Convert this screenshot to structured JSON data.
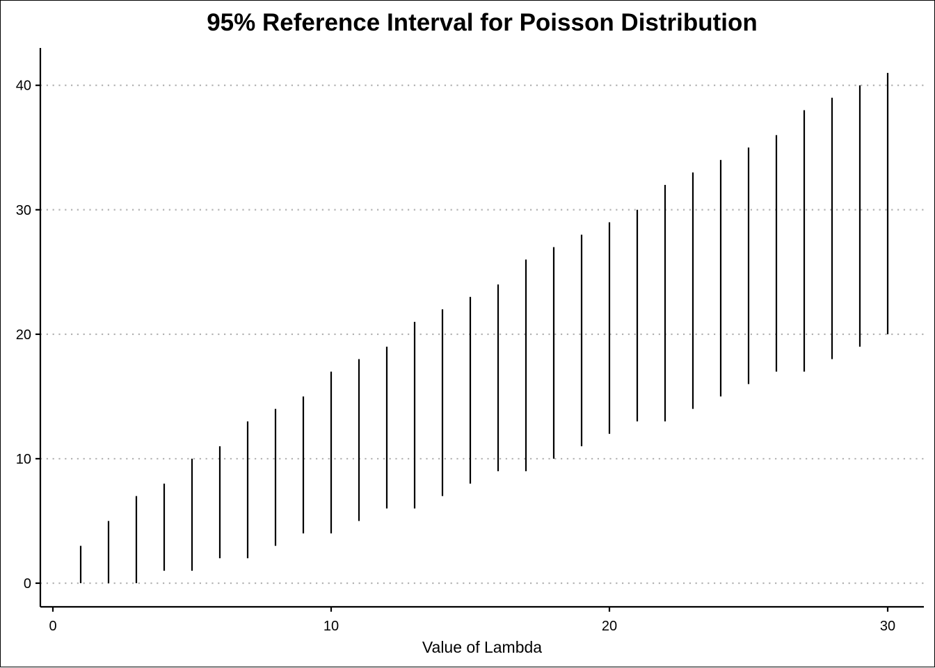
{
  "chart_data": {
    "type": "interval",
    "title": "95% Reference Interval for Poisson Distribution",
    "xlabel": "Value of Lambda",
    "ylabel": "",
    "xlim": [
      -0.45,
      31.3
    ],
    "ylim": [
      -1.9,
      43
    ],
    "x_ticks": [
      0,
      10,
      20,
      30
    ],
    "y_ticks": [
      0,
      10,
      20,
      30,
      40
    ],
    "grid": "horizontal-dotted",
    "colors": {
      "interval": "#000000",
      "grid": "#b3b3b3",
      "axis": "#000000"
    },
    "intervals": [
      {
        "lambda": 1,
        "lower": 0,
        "upper": 3
      },
      {
        "lambda": 2,
        "lower": 0,
        "upper": 5
      },
      {
        "lambda": 3,
        "lower": 0,
        "upper": 7
      },
      {
        "lambda": 4,
        "lower": 1,
        "upper": 8
      },
      {
        "lambda": 5,
        "lower": 1,
        "upper": 10
      },
      {
        "lambda": 6,
        "lower": 2,
        "upper": 11
      },
      {
        "lambda": 7,
        "lower": 2,
        "upper": 13
      },
      {
        "lambda": 8,
        "lower": 3,
        "upper": 14
      },
      {
        "lambda": 9,
        "lower": 4,
        "upper": 15
      },
      {
        "lambda": 10,
        "lower": 4,
        "upper": 17
      },
      {
        "lambda": 11,
        "lower": 5,
        "upper": 18
      },
      {
        "lambda": 12,
        "lower": 6,
        "upper": 19
      },
      {
        "lambda": 13,
        "lower": 6,
        "upper": 21
      },
      {
        "lambda": 14,
        "lower": 7,
        "upper": 22
      },
      {
        "lambda": 15,
        "lower": 8,
        "upper": 23
      },
      {
        "lambda": 16,
        "lower": 9,
        "upper": 24
      },
      {
        "lambda": 17,
        "lower": 9,
        "upper": 26
      },
      {
        "lambda": 18,
        "lower": 10,
        "upper": 27
      },
      {
        "lambda": 19,
        "lower": 11,
        "upper": 28
      },
      {
        "lambda": 20,
        "lower": 12,
        "upper": 29
      },
      {
        "lambda": 21,
        "lower": 13,
        "upper": 30
      },
      {
        "lambda": 22,
        "lower": 13,
        "upper": 32
      },
      {
        "lambda": 23,
        "lower": 14,
        "upper": 33
      },
      {
        "lambda": 24,
        "lower": 15,
        "upper": 34
      },
      {
        "lambda": 25,
        "lower": 16,
        "upper": 35
      },
      {
        "lambda": 26,
        "lower": 17,
        "upper": 36
      },
      {
        "lambda": 27,
        "lower": 17,
        "upper": 38
      },
      {
        "lambda": 28,
        "lower": 18,
        "upper": 39
      },
      {
        "lambda": 29,
        "lower": 19,
        "upper": 40
      },
      {
        "lambda": 30,
        "lower": 20,
        "upper": 41
      }
    ]
  }
}
